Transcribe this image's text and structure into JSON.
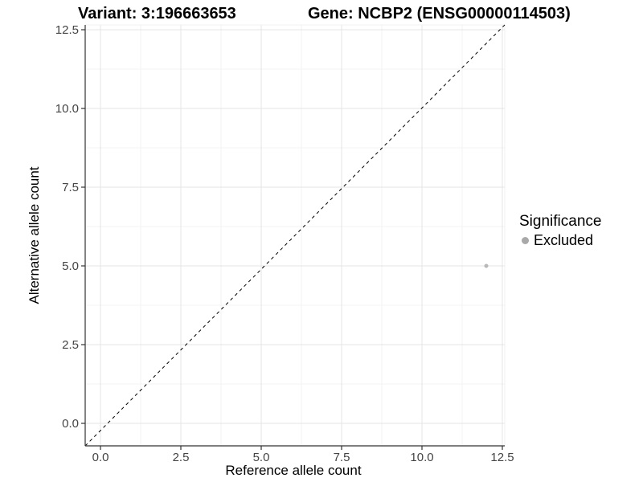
{
  "header": {
    "title_variant": "Variant: 3:196663653",
    "title_gene": "Gene: NCBP2 (ENSG00000114503)"
  },
  "legend": {
    "title": "Significance",
    "items": [
      {
        "label": "Excluded",
        "color": "#a9a9a9"
      }
    ]
  },
  "chart_data": {
    "type": "scatter",
    "title": "Variant: 3:196663653   Gene: NCBP2 (ENSG00000114503)",
    "xlabel": "Reference allele count",
    "ylabel": "Alternative allele count",
    "xlim": [
      -0.5,
      12.6
    ],
    "ylim": [
      -0.7,
      12.65
    ],
    "xticks": [
      0,
      2.5,
      5,
      7.5,
      10,
      12.5
    ],
    "yticks": [
      0,
      2.5,
      5,
      7.5,
      10,
      12.5
    ],
    "xtick_labels": [
      "0.0",
      "2.5",
      "5.0",
      "7.5",
      "10.0",
      "12.5"
    ],
    "ytick_labels": [
      "0.0",
      "2.5",
      "5.0",
      "7.5",
      "10.0",
      "12.5"
    ],
    "grid": "major+minor",
    "legend_position": "right",
    "series": [
      {
        "name": "Excluded",
        "color": "#b8b8b8",
        "marker": "circle",
        "points": [
          {
            "x": 12,
            "y": 5
          }
        ]
      }
    ],
    "reference_line": {
      "type": "identity",
      "slope": 1,
      "intercept": 0,
      "linestyle": "dashed",
      "color": "#000000"
    }
  },
  "colors": {
    "background": "#ffffff",
    "grid_major": "#e4e4e4",
    "grid_minor": "#f3f3f3",
    "panel_border": "#f0f0f0",
    "axis_line": "#333333",
    "tick_text": "#444444",
    "point": "#b8b8b8"
  }
}
